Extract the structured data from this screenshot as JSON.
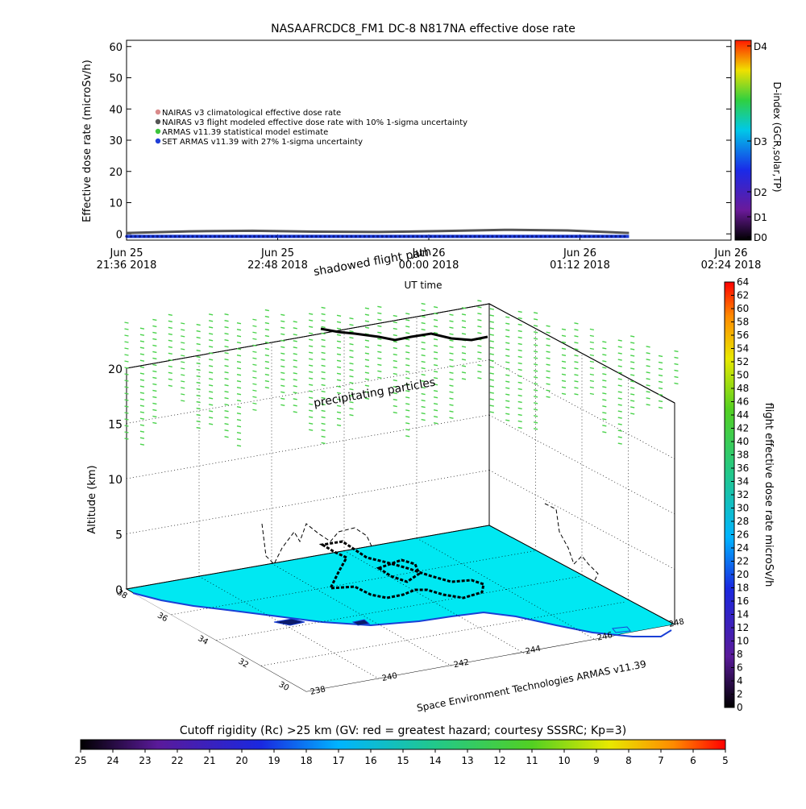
{
  "chart_data": [
    {
      "type": "line",
      "title": "NASAAFRCDC8_FM1 DC-8    N817NA effective dose rate",
      "ylabel": "Effective dose rate (microSv/h)",
      "xlabel": "UT time",
      "ylim": [
        -2,
        62
      ],
      "yticks": [
        0,
        10,
        20,
        30,
        40,
        50,
        60
      ],
      "xticks": [
        {
          "day": "Jun 25",
          "time": "21:36 2018"
        },
        {
          "day": "Jun 25",
          "time": "22:48 2018"
        },
        {
          "day": "Jun 26",
          "time": "00:00 2018"
        },
        {
          "day": "Jun 26",
          "time": "01:12 2018"
        },
        {
          "day": "Jun 26",
          "time": "02:24 2018"
        }
      ],
      "legend": [
        {
          "label": "NAIRAS v3 climatological effective dose rate",
          "color": "#d98a8a"
        },
        {
          "label": "NAIRAS v3 flight modeled effective dose rate with 10% 1-sigma uncertainty",
          "color": "#555555"
        },
        {
          "label": "ARMAS v11.39 statistical model estimate",
          "color": "#3cc43c"
        },
        {
          "label": "SET ARMAS v11.39 with 27% 1-sigma uncertainty",
          "color": "#1f3fd8"
        }
      ],
      "legend_position": "top-left",
      "series": [
        {
          "x_hours": [
            0,
            0.5,
            1.0,
            1.5,
            2.0,
            2.5,
            3.0,
            3.5,
            3.99
          ],
          "values": [
            0.3,
            0.8,
            1.0,
            0.7,
            0.6,
            0.9,
            1.3,
            1.1,
            0.3
          ]
        }
      ],
      "x_range_hours": [
        0,
        4.8
      ],
      "d_index": {
        "label": "D-index (GCR,solar,TP)",
        "levels": [
          "D0",
          "D1",
          "D2",
          "D3",
          "D4"
        ]
      }
    },
    {
      "type": "scatter",
      "zlabel": "Altitude (km)",
      "zticks": [
        0,
        5,
        10,
        15,
        20
      ],
      "lat_ticks": [
        30,
        32,
        34,
        36,
        38
      ],
      "lon_ticks": [
        238,
        240,
        242,
        244,
        246,
        248
      ],
      "annotations": [
        "shadowed flight path",
        "precipitating particles"
      ],
      "credit": "Space Environment Technologies ARMAS v11.39",
      "dose_colorbar": {
        "label": "flight effective dose rate microSv/h",
        "ticks": [
          0,
          2,
          4,
          6,
          8,
          10,
          12,
          14,
          16,
          18,
          20,
          22,
          24,
          26,
          28,
          30,
          32,
          34,
          36,
          38,
          40,
          42,
          44,
          46,
          48,
          50,
          52,
          54,
          56,
          58,
          60,
          62,
          64
        ]
      },
      "rigidity_colorbar": {
        "label": "Cutoff rigidity (Rc) >25 km (GV: red = greatest hazard; courtesy SSSRC; Kp=3)",
        "ticks": [
          25,
          24,
          23,
          22,
          21,
          20,
          19,
          18,
          17,
          16,
          15,
          14,
          13,
          12,
          11,
          10,
          9,
          8,
          7,
          6,
          5
        ]
      },
      "colors": {
        "surface": "#00e8f2",
        "coast": "#1a3fd6",
        "particles": "#49d24a",
        "path": "#000000"
      }
    }
  ]
}
